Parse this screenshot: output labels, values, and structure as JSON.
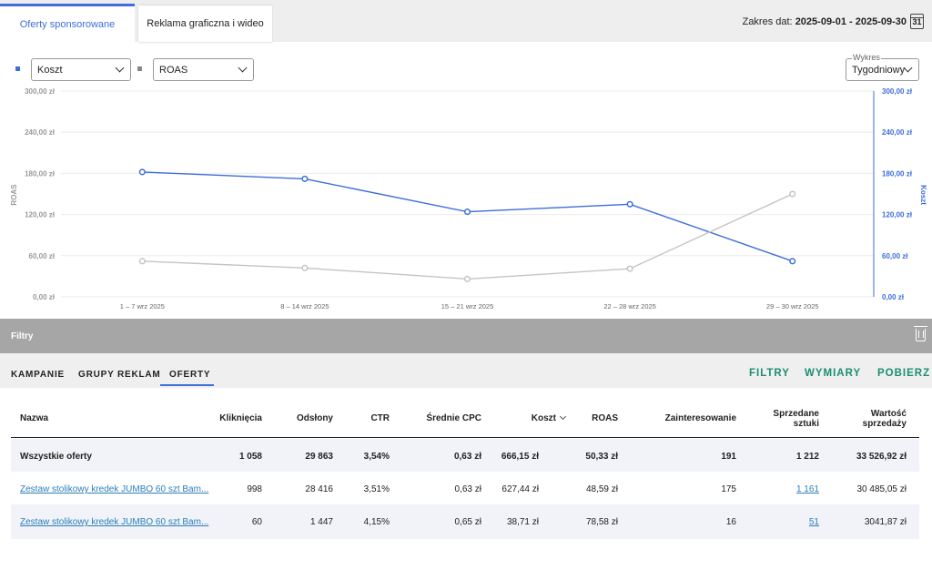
{
  "tabs": {
    "sponsored": "Oferty sponsorowane",
    "display": "Reklama graficzna i wideo"
  },
  "date_range": {
    "label": "Zakres dat:",
    "value": "2025-09-01 - 2025-09-30",
    "calendar_day": "31"
  },
  "selectors": {
    "metric1": "Koszt",
    "metric2": "ROAS",
    "chart_legend": "Wykres",
    "chart_mode": "Tygodniowy"
  },
  "chart_data": {
    "type": "line",
    "categories": [
      "1 – 7 wrz 2025",
      "8 – 14 wrz 2025",
      "15 – 21 wrz 2025",
      "22 – 28 wrz 2025",
      "29 – 30 wrz 2025"
    ],
    "series": [
      {
        "name": "Koszt",
        "axis": "right",
        "color": "#3d6ed9",
        "values": [
          182,
          172,
          124,
          135,
          52
        ]
      },
      {
        "name": "ROAS",
        "axis": "left",
        "color": "#c4c4c4",
        "values": [
          52,
          42,
          26,
          41,
          150
        ]
      }
    ],
    "left_axis_label": "ROAS",
    "right_axis_label": "Koszt",
    "yticks_left": [
      "0,00 zł",
      "60,00 zł",
      "120,00 zł",
      "180,00 zł",
      "240,00 zł",
      "300,00 zł"
    ],
    "yticks_right": [
      "0,00 zł",
      "60,00 zł",
      "120,00 zł",
      "180,00 zł",
      "240,00 zł",
      "300,00 zł"
    ],
    "ylim": [
      0,
      300
    ],
    "grid": true
  },
  "filters": {
    "label": "Filtry"
  },
  "subtabs": {
    "campaigns": "KAMPANIE",
    "adgroups": "GRUPY REKLAM",
    "offers": "OFERTY"
  },
  "actions": {
    "filters": "FILTRY",
    "dimensions": "WYMIARY",
    "download": "POBIERZ"
  },
  "table": {
    "headers": {
      "name": "Nazwa",
      "clicks": "Kliknięcia",
      "impressions": "Odsłony",
      "ctr": "CTR",
      "cpc": "Średnie CPC",
      "cost": "Koszt",
      "roas": "ROAS",
      "interest": "Zainteresowanie",
      "sold_1": "Sprzedane",
      "sold_2": "sztuki",
      "value_1": "Wartość",
      "value_2": "sprzedaży"
    },
    "total": {
      "name": "Wszystkie oferty",
      "clicks": "1 058",
      "impressions": "29 863",
      "ctr": "3,54%",
      "cpc": "0,63 zł",
      "cost": "666,15 zł",
      "roas": "50,33 zł",
      "interest": "191",
      "sold": "1 212",
      "value": "33 526,92 zł"
    },
    "rows": [
      {
        "name": "Zestaw stolikowy kredek JUMBO 60 szt Bam...",
        "clicks": "998",
        "impressions": "28 416",
        "ctr": "3,51%",
        "cpc": "0,63 zł",
        "cost": "627,44 zł",
        "roas": "48,59 zł",
        "interest": "175",
        "sold": "1 161",
        "value": "30 485,05 zł"
      },
      {
        "name": "Zestaw stolikowy kredek JUMBO 60 szt Bam...",
        "clicks": "60",
        "impressions": "1 447",
        "ctr": "4,15%",
        "cpc": "0,65 zł",
        "cost": "38,71 zł",
        "roas": "78,58 zł",
        "interest": "16",
        "sold": "51",
        "value": "3041,87 zł"
      }
    ]
  }
}
